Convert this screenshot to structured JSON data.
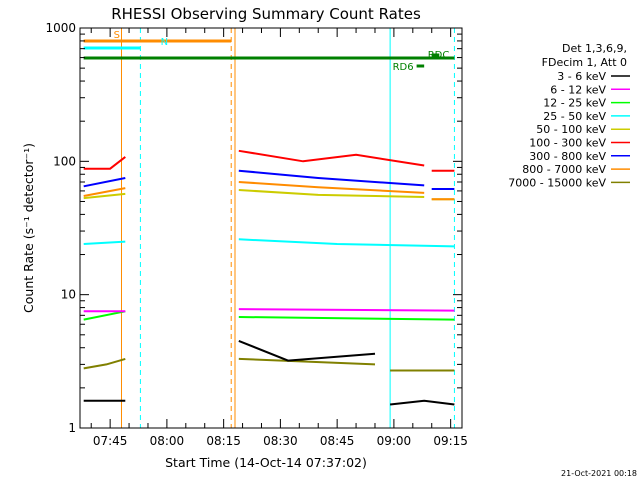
{
  "chart_data": {
    "type": "line",
    "title": "RHESSI Observing Summary Count Rates",
    "xlabel": "Start Time (14-Oct-14 07:37:02)",
    "ylabel": "Count Rate (s⁻¹ detector⁻¹)",
    "y_scale": "log",
    "ylim": [
      1,
      1000
    ],
    "xlim": [
      "07:37:02",
      "09:18:00"
    ],
    "x_ticks": [
      "07:45",
      "08:00",
      "08:15",
      "08:30",
      "08:45",
      "09:00",
      "09:15"
    ],
    "y_ticks": [
      "1",
      "10",
      "100",
      "1000"
    ],
    "legend_header": [
      "Det 1,3,6,9,",
      "FDecim 1, Att 0"
    ],
    "series": [
      {
        "name": "3 - 6 keV",
        "color": "#000000",
        "segments": [
          {
            "x": [
              "07:38",
              "07:44",
              "07:49"
            ],
            "y": [
              1.6,
              1.6,
              1.6
            ]
          },
          {
            "x": [
              "08:19",
              "08:32",
              "08:55"
            ],
            "y": [
              4.5,
              3.2,
              3.6
            ]
          },
          {
            "x": [
              "08:59",
              "09:08",
              "09:16"
            ],
            "y": [
              1.5,
              1.6,
              1.5
            ]
          }
        ]
      },
      {
        "name": "6 - 12 keV",
        "color": "#ff00ff",
        "segments": [
          {
            "x": [
              "07:38",
              "07:49"
            ],
            "y": [
              7.5,
              7.5
            ]
          },
          {
            "x": [
              "08:19",
              "09:16"
            ],
            "y": [
              7.8,
              7.6
            ]
          }
        ]
      },
      {
        "name": "12 - 25 keV",
        "color": "#00ff00",
        "segments": [
          {
            "x": [
              "07:38",
              "07:49"
            ],
            "y": [
              6.5,
              7.5
            ]
          },
          {
            "x": [
              "08:19",
              "09:16"
            ],
            "y": [
              6.8,
              6.5
            ]
          }
        ]
      },
      {
        "name": "25 - 50 keV",
        "color": "#00ffff",
        "segments": [
          {
            "x": [
              "07:38",
              "07:49"
            ],
            "y": [
              24,
              25
            ]
          },
          {
            "x": [
              "08:19",
              "08:45",
              "09:16"
            ],
            "y": [
              26,
              24,
              23
            ]
          }
        ]
      },
      {
        "name": "50 - 100 keV",
        "color": "#cccc00",
        "segments": [
          {
            "x": [
              "07:38",
              "07:49"
            ],
            "y": [
              53,
              57
            ]
          },
          {
            "x": [
              "08:19",
              "08:40",
              "09:08"
            ],
            "y": [
              61,
              56,
              54
            ]
          },
          {
            "x": [
              "09:10",
              "09:16"
            ],
            "y": [
              52,
              52
            ]
          }
        ]
      },
      {
        "name": "100 - 300 keV",
        "color": "#ff0000",
        "segments": [
          {
            "x": [
              "07:38",
              "07:45",
              "07:49"
            ],
            "y": [
              88,
              88,
              108
            ]
          },
          {
            "x": [
              "08:19",
              "08:36",
              "08:50",
              "09:08"
            ],
            "y": [
              120,
              100,
              112,
              93
            ]
          },
          {
            "x": [
              "09:10",
              "09:16"
            ],
            "y": [
              85,
              85
            ]
          }
        ]
      },
      {
        "name": "300 - 800 keV",
        "color": "#0000ff",
        "segments": [
          {
            "x": [
              "07:38",
              "07:49"
            ],
            "y": [
              65,
              75
            ]
          },
          {
            "x": [
              "08:19",
              "08:40",
              "09:08"
            ],
            "y": [
              85,
              75,
              66
            ]
          },
          {
            "x": [
              "09:10",
              "09:16"
            ],
            "y": [
              62,
              62
            ]
          }
        ]
      },
      {
        "name": "800 - 7000 keV",
        "color": "#ff8c00",
        "segments": [
          {
            "x": [
              "07:38",
              "07:49"
            ],
            "y": [
              55,
              63
            ]
          },
          {
            "x": [
              "08:19",
              "08:40",
              "09:08"
            ],
            "y": [
              70,
              64,
              58
            ]
          },
          {
            "x": [
              "09:10",
              "09:16"
            ],
            "y": [
              52,
              52
            ]
          }
        ]
      },
      {
        "name": "7000 - 15000 keV",
        "color": "#808000",
        "segments": [
          {
            "x": [
              "07:38",
              "07:44",
              "07:49"
            ],
            "y": [
              2.8,
              3.0,
              3.3
            ]
          },
          {
            "x": [
              "08:19",
              "08:55"
            ],
            "y": [
              3.3,
              3.0
            ]
          },
          {
            "x": [
              "08:59",
              "09:16"
            ],
            "y": [
              2.7,
              2.7
            ]
          }
        ]
      }
    ],
    "attenuator_events": [
      {
        "label": "S",
        "x": [
          "07:38",
          "08:17"
        ],
        "color": "#ff8c00"
      },
      {
        "label": "N",
        "x": [
          "07:38",
          "07:53"
        ],
        "color": "#00ffff"
      },
      {
        "label": "",
        "x": [
          "07:38",
          "09:16"
        ],
        "color": "#008000"
      },
      {
        "label": "RD6",
        "x": [
          "09:06",
          "09:08"
        ],
        "color": "#008000"
      },
      {
        "label": "RDC",
        "x": [
          "09:10",
          "09:12"
        ],
        "color": "#008000"
      }
    ],
    "vertical_markers": [
      {
        "x": "07:48",
        "color": "#ff8c00",
        "style": "solid"
      },
      {
        "x": "07:53",
        "color": "#00ffff",
        "style": "dashed"
      },
      {
        "x": "08:17",
        "color": "#ff8c00",
        "style": "dashed"
      },
      {
        "x": "08:18",
        "color": "#ff8c00",
        "style": "solid"
      },
      {
        "x": "08:59",
        "color": "#00ffff",
        "style": "solid"
      },
      {
        "x": "09:16",
        "color": "#00ffff",
        "style": "dashed"
      }
    ],
    "grid": false,
    "legend_position": "right"
  },
  "footer": {
    "stamp": "21-Oct-2021 00:18"
  }
}
